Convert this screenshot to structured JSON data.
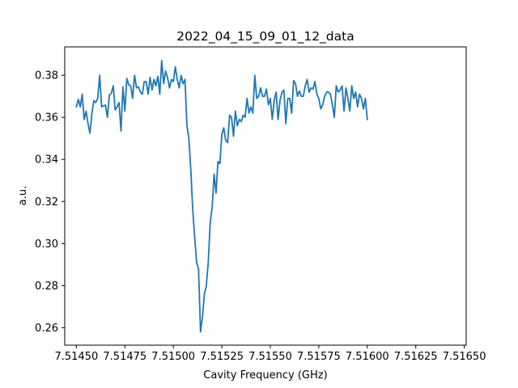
{
  "chart_data": {
    "type": "line",
    "title": "2022_04_15_09_01_12_data",
    "xlabel": "Cavity Frequency (GHz)",
    "ylabel": "a.u.",
    "xlim": [
      7.51444,
      7.51651
    ],
    "ylim": [
      0.2517,
      0.3935
    ],
    "xticks": [
      7.5145,
      7.51475,
      7.515,
      7.51525,
      7.5155,
      7.51575,
      7.516,
      7.51625,
      7.5165
    ],
    "xtick_labels": [
      "7.51450",
      "7.51475",
      "7.51500",
      "7.51525",
      "7.51550",
      "7.51575",
      "7.51600",
      "7.51625",
      "7.51650"
    ],
    "yticks": [
      0.26,
      0.28,
      0.3,
      0.32,
      0.34,
      0.36,
      0.38
    ],
    "ytick_labels": [
      "0.26",
      "0.28",
      "0.30",
      "0.32",
      "0.34",
      "0.36",
      "0.38"
    ],
    "grid": false,
    "series": [
      {
        "color": "#1f77b4",
        "x_start": 7.5145,
        "x_step": 1e-05,
        "y": [
          0.365,
          0.3686,
          0.365,
          0.371,
          0.359,
          0.363,
          0.357,
          0.3525,
          0.362,
          0.368,
          0.367,
          0.369,
          0.38,
          0.365,
          0.3655,
          0.3658,
          0.36,
          0.3705,
          0.3715,
          0.375,
          0.3635,
          0.365,
          0.367,
          0.3535,
          0.3745,
          0.363,
          0.3785,
          0.3755,
          0.375,
          0.369,
          0.38,
          0.374,
          0.3745,
          0.372,
          0.371,
          0.377,
          0.377,
          0.371,
          0.379,
          0.373,
          0.378,
          0.375,
          0.3795,
          0.371,
          0.387,
          0.376,
          0.382,
          0.379,
          0.374,
          0.378,
          0.377,
          0.384,
          0.378,
          0.374,
          0.38,
          0.376,
          0.378,
          0.356,
          0.35,
          0.335,
          0.316,
          0.303,
          0.291,
          0.288,
          0.258,
          0.265,
          0.276,
          0.28,
          0.291,
          0.31,
          0.317,
          0.333,
          0.324,
          0.339,
          0.338,
          0.352,
          0.355,
          0.349,
          0.348,
          0.361,
          0.36,
          0.351,
          0.363,
          0.356,
          0.359,
          0.358,
          0.361,
          0.36,
          0.369,
          0.362,
          0.365,
          0.362,
          0.38,
          0.369,
          0.37,
          0.374,
          0.37,
          0.37,
          0.3735,
          0.366,
          0.369,
          0.359,
          0.368,
          0.372,
          0.359,
          0.368,
          0.372,
          0.373,
          0.357,
          0.369,
          0.369,
          0.362,
          0.3775,
          0.376,
          0.37,
          0.3725,
          0.37,
          0.37,
          0.375,
          0.378,
          0.372,
          0.374,
          0.3735,
          0.377,
          0.371,
          0.369,
          0.364,
          0.366,
          0.37,
          0.372,
          0.372,
          0.371,
          0.366,
          0.36,
          0.375,
          0.372,
          0.373,
          0.375,
          0.363,
          0.374,
          0.369,
          0.363,
          0.375,
          0.369,
          0.372,
          0.365,
          0.371,
          0.369,
          0.364,
          0.369,
          0.359
        ]
      }
    ]
  }
}
